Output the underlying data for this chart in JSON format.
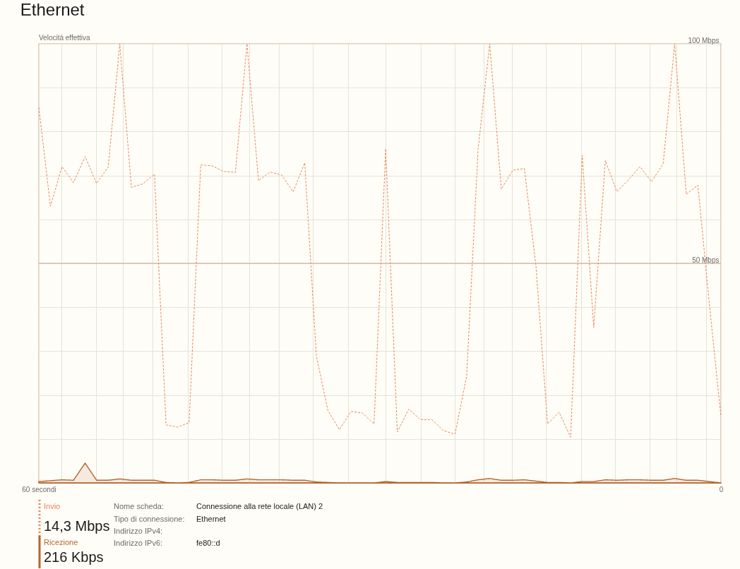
{
  "chart_data": {
    "type": "line",
    "title": "Ethernet",
    "ylabel": "Velocità effettiva",
    "x": [
      60,
      58.98,
      57.97,
      56.95,
      55.93,
      54.92,
      53.9,
      52.88,
      51.86,
      50.85,
      49.83,
      48.81,
      47.8,
      46.78,
      45.76,
      44.75,
      43.73,
      42.71,
      41.69,
      40.68,
      39.66,
      38.64,
      37.63,
      36.61,
      35.59,
      34.58,
      33.56,
      32.54,
      31.53,
      30.51,
      29.49,
      28.47,
      27.46,
      26.44,
      25.42,
      24.41,
      23.39,
      22.37,
      21.36,
      20.34,
      19.32,
      18.31,
      17.29,
      16.27,
      15.25,
      14.24,
      13.22,
      12.2,
      11.19,
      10.17,
      9.15,
      8.14,
      7.12,
      6.1,
      5.08,
      4.07,
      3.05,
      2.03,
      1.02,
      0
    ],
    "series": [
      {
        "name": "Invio",
        "line_style": "dashed",
        "color": "#e8865a",
        "values": [
          85.5,
          63,
          72,
          68.4,
          74.3,
          68.2,
          71.9,
          100,
          67.3,
          68.1,
          70.3,
          13.2,
          12.7,
          13.7,
          72.4,
          72.2,
          70.9,
          70.7,
          100,
          68.8,
          70.8,
          70.1,
          66.3,
          72.9,
          29,
          16.5,
          12.1,
          16.3,
          15.9,
          13.4,
          76.1,
          11.6,
          16.8,
          14.4,
          14.4,
          11.9,
          11.1,
          24.3,
          76,
          100,
          66.9,
          71.2,
          71.6,
          49.3,
          13.4,
          16.1,
          10.4,
          74.6,
          35.4,
          73.4,
          66.3,
          69,
          72,
          68.6,
          72.7,
          100,
          65.7,
          67.8,
          40.8,
          15.1
        ]
      },
      {
        "name": "Ricezione",
        "type": "area",
        "line_style": "solid",
        "color": "#b5652e",
        "values": [
          0.3,
          0.5,
          0.7,
          0.6,
          4.5,
          0.6,
          0.6,
          0.9,
          0.6,
          0.6,
          0.6,
          0.1,
          0,
          0.1,
          0.7,
          0.7,
          0.6,
          0.6,
          0.9,
          0.7,
          0.7,
          0.7,
          0.6,
          0.6,
          0.2,
          0.1,
          0,
          0,
          0,
          0,
          0.3,
          0.1,
          0.1,
          0.1,
          0.1,
          0,
          0,
          0.2,
          0.7,
          1,
          0.6,
          0.6,
          0.7,
          0.4,
          0.1,
          0.1,
          0,
          0.3,
          0.3,
          0.7,
          0.6,
          0.7,
          0.7,
          0.6,
          0.6,
          1,
          0.6,
          0.6,
          0.3,
          0
        ]
      }
    ],
    "xlim": [
      60,
      0
    ],
    "xticks": [
      {
        "value": 60,
        "label": "60 secondi"
      },
      {
        "value": 58,
        "label": null
      },
      {
        "value": 55,
        "label": null
      },
      {
        "value": 52.6,
        "label": null
      },
      {
        "value": 50,
        "label": null
      },
      {
        "value": 46.9,
        "label": null
      },
      {
        "value": 43.9,
        "label": null
      },
      {
        "value": 41.5,
        "label": null
      },
      {
        "value": 38.9,
        "label": null
      },
      {
        "value": 35.9,
        "label": null
      },
      {
        "value": 32.8,
        "label": null
      },
      {
        "value": 29.5,
        "label": null
      },
      {
        "value": 26.4,
        "label": null
      },
      {
        "value": 23.4,
        "label": null
      },
      {
        "value": 20.9,
        "label": null
      },
      {
        "value": 18.4,
        "label": null
      },
      {
        "value": 15.4,
        "label": null
      },
      {
        "value": 12.3,
        "label": null
      },
      {
        "value": 9.3,
        "label": null
      },
      {
        "value": 6.3,
        "label": null
      },
      {
        "value": 3.9,
        "label": null
      },
      {
        "value": 1.3,
        "label": null
      },
      {
        "value": 0,
        "label": "0"
      }
    ],
    "ylim": [
      0,
      100
    ],
    "yticks": [
      {
        "value": 10,
        "label": null
      },
      {
        "value": 20,
        "label": null
      },
      {
        "value": 30,
        "label": null
      },
      {
        "value": 40,
        "label": null
      },
      {
        "value": 50,
        "label": "50 Mbps"
      },
      {
        "value": 60,
        "label": null
      },
      {
        "value": 70,
        "label": null
      },
      {
        "value": 80,
        "label": null
      },
      {
        "value": 90,
        "label": null
      },
      {
        "value": 100,
        "label": "100 Mbps"
      }
    ],
    "ref_lines": [
      {
        "axis": "y",
        "value": 50,
        "color": "#c9a08a"
      }
    ],
    "grid": true,
    "legend": "bottom left",
    "annotations": [
      "14,3 Mbps",
      "216 Kbps",
      "Nome scheda:",
      "Connessione alla rete locale (LAN) 2",
      "Tipo di connessione:",
      "Ethernet",
      "Indirizzo IPv4:",
      "Indirizzo IPv6:",
      "fe80::d"
    ]
  }
}
